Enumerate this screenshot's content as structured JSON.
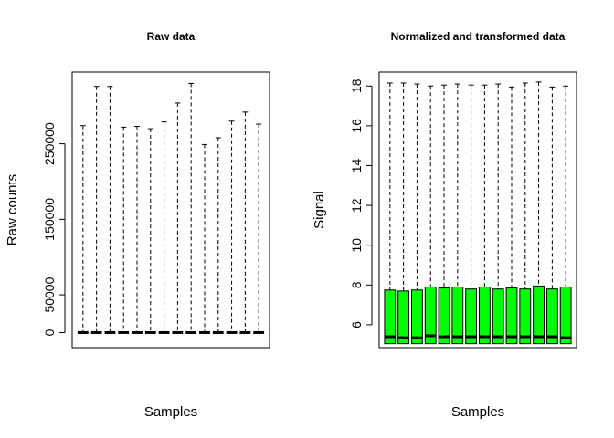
{
  "chart_data": [
    {
      "type": "boxplot",
      "title": "Raw data",
      "xlabel": "Samples",
      "ylabel": "Raw counts",
      "ylim": [
        -20000,
        345000
      ],
      "yticks": [
        0,
        50000,
        150000,
        250000
      ],
      "ytick_labels": [
        "0",
        "50000",
        "150000",
        "250000"
      ],
      "grid": false,
      "box_color": "#ffffff",
      "samples": [
        {
          "min": 0,
          "q1": 0,
          "median": 0,
          "q3": 0,
          "max": 274000
        },
        {
          "min": 0,
          "q1": 0,
          "median": 0,
          "q3": 0,
          "max": 326000
        },
        {
          "min": 0,
          "q1": 0,
          "median": 0,
          "q3": 0,
          "max": 326000
        },
        {
          "min": 0,
          "q1": 0,
          "median": 0,
          "q3": 0,
          "max": 272000
        },
        {
          "min": 0,
          "q1": 0,
          "median": 0,
          "q3": 0,
          "max": 273000
        },
        {
          "min": 0,
          "q1": 0,
          "median": 0,
          "q3": 0,
          "max": 270000
        },
        {
          "min": 0,
          "q1": 0,
          "median": 0,
          "q3": 0,
          "max": 279000
        },
        {
          "min": 0,
          "q1": 0,
          "median": 0,
          "q3": 0,
          "max": 304000
        },
        {
          "min": 0,
          "q1": 0,
          "median": 0,
          "q3": 0,
          "max": 330000
        },
        {
          "min": 0,
          "q1": 0,
          "median": 0,
          "q3": 0,
          "max": 249000
        },
        {
          "min": 0,
          "q1": 0,
          "median": 0,
          "q3": 0,
          "max": 258000
        },
        {
          "min": 0,
          "q1": 0,
          "median": 0,
          "q3": 0,
          "max": 280000
        },
        {
          "min": 0,
          "q1": 0,
          "median": 0,
          "q3": 0,
          "max": 292000
        },
        {
          "min": 0,
          "q1": 0,
          "median": 0,
          "q3": 0,
          "max": 276000
        }
      ]
    },
    {
      "type": "boxplot",
      "title": "Normalized and transformed data",
      "xlabel": "Samples",
      "ylabel": "Signal",
      "ylim": [
        4.85,
        18.7
      ],
      "yticks": [
        6,
        8,
        10,
        12,
        14,
        16,
        18
      ],
      "ytick_labels": [
        "6",
        "8",
        "10",
        "12",
        "14",
        "16",
        "18"
      ],
      "grid": false,
      "box_color": "#00ff00",
      "samples": [
        {
          "min": 5.05,
          "q1": 5.05,
          "median": 5.4,
          "q3": 7.75,
          "max": 18.15
        },
        {
          "min": 5.05,
          "q1": 5.05,
          "median": 5.35,
          "q3": 7.7,
          "max": 18.15
        },
        {
          "min": 5.05,
          "q1": 5.05,
          "median": 5.35,
          "q3": 7.75,
          "max": 18.1
        },
        {
          "min": 5.05,
          "q1": 5.05,
          "median": 5.45,
          "q3": 7.9,
          "max": 18.0
        },
        {
          "min": 5.05,
          "q1": 5.05,
          "median": 5.4,
          "q3": 7.85,
          "max": 18.05
        },
        {
          "min": 5.05,
          "q1": 5.05,
          "median": 5.4,
          "q3": 7.9,
          "max": 18.1
        },
        {
          "min": 5.05,
          "q1": 5.05,
          "median": 5.4,
          "q3": 7.8,
          "max": 18.05
        },
        {
          "min": 5.05,
          "q1": 5.05,
          "median": 5.4,
          "q3": 7.9,
          "max": 18.05
        },
        {
          "min": 5.05,
          "q1": 5.05,
          "median": 5.4,
          "q3": 7.8,
          "max": 18.1
        },
        {
          "min": 5.05,
          "q1": 5.05,
          "median": 5.4,
          "q3": 7.85,
          "max": 17.95
        },
        {
          "min": 5.05,
          "q1": 5.05,
          "median": 5.4,
          "q3": 7.8,
          "max": 18.15
        },
        {
          "min": 5.05,
          "q1": 5.05,
          "median": 5.4,
          "q3": 7.95,
          "max": 18.2
        },
        {
          "min": 5.05,
          "q1": 5.05,
          "median": 5.4,
          "q3": 7.8,
          "max": 17.95
        },
        {
          "min": 5.05,
          "q1": 5.05,
          "median": 5.35,
          "q3": 7.9,
          "max": 18.0
        }
      ]
    }
  ]
}
